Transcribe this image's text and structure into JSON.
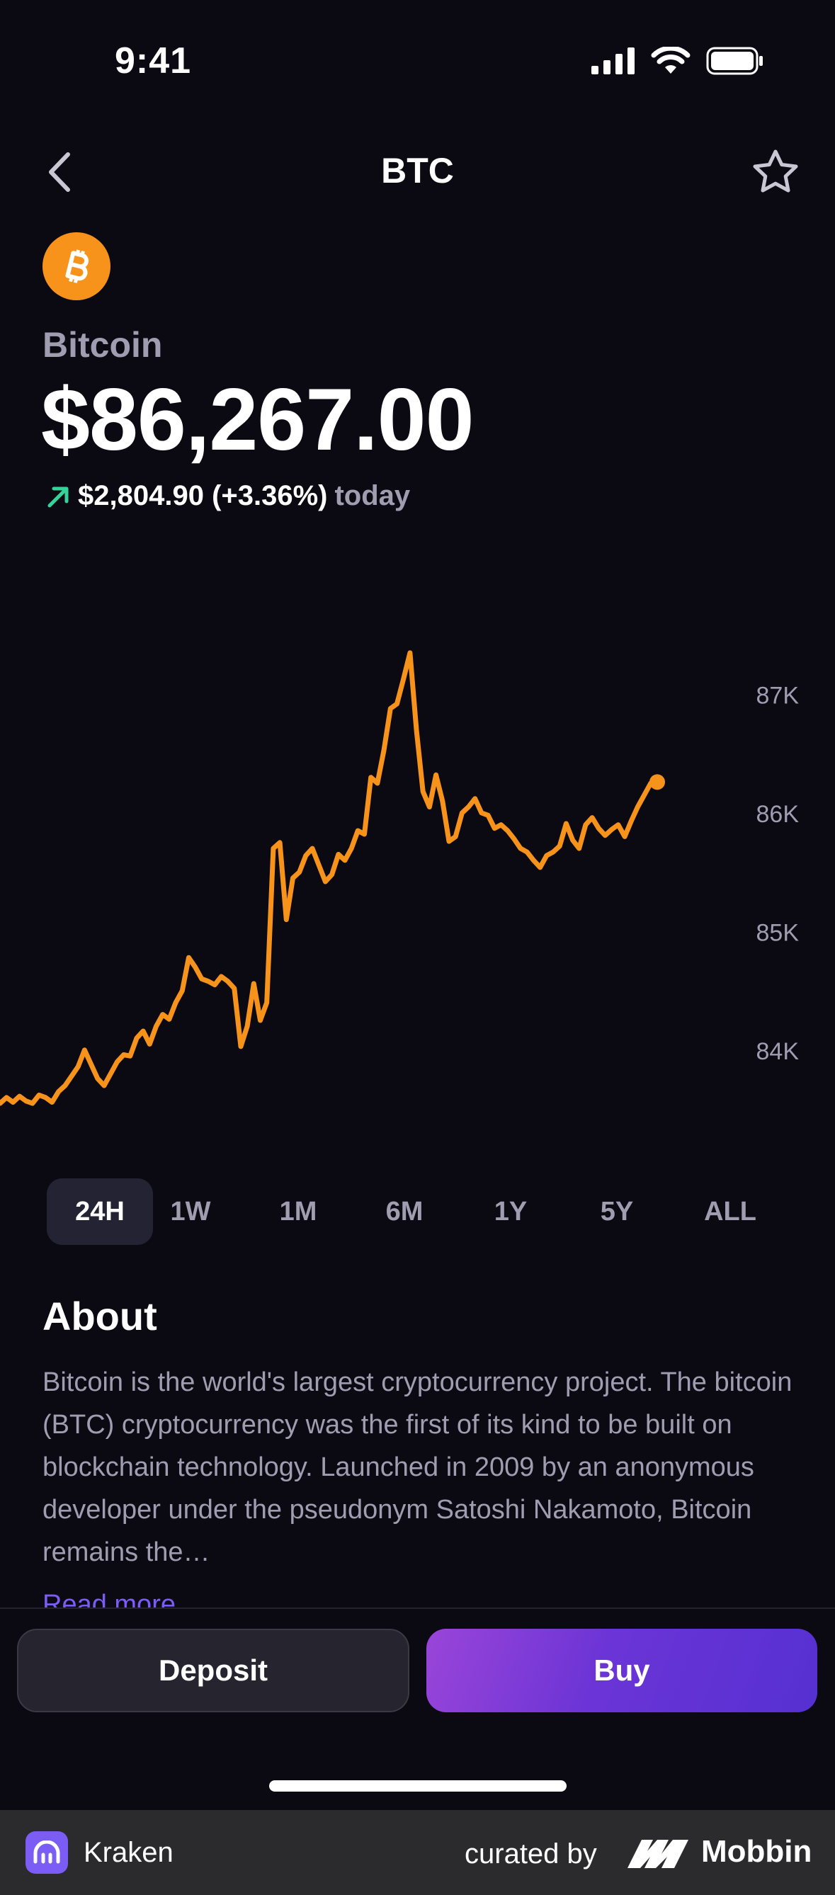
{
  "status_bar": {
    "time": "9:41"
  },
  "nav": {
    "title": "BTC"
  },
  "coin": {
    "name": "Bitcoin",
    "price": "$86,267.00",
    "change_value": "$2,804.90 (+3.36%)",
    "change_suffix": "today",
    "logo_color": "#f7931a",
    "up_color": "#34d399"
  },
  "chart_data": {
    "type": "line",
    "line_color": "#f7931a",
    "y_ticks": [
      "87K",
      "86K",
      "85K",
      "84K"
    ],
    "y_tick_values": [
      87000,
      86000,
      85000,
      84000
    ],
    "ylim": [
      83300,
      87600
    ],
    "grid": false,
    "series": [
      {
        "values": [
          83550,
          83600,
          83560,
          83610,
          83570,
          83550,
          83620,
          83600,
          83560,
          83650,
          83700,
          83780,
          83860,
          84000,
          83880,
          83760,
          83700,
          83800,
          83900,
          83960,
          83950,
          84100,
          84160,
          84050,
          84200,
          84300,
          84260,
          84400,
          84500,
          84780,
          84700,
          84600,
          84580,
          84550,
          84620,
          84580,
          84520,
          84030,
          84200,
          84560,
          84250,
          84400,
          85700,
          85750,
          85100,
          85450,
          85500,
          85640,
          85700,
          85560,
          85420,
          85480,
          85650,
          85600,
          85700,
          85850,
          85820,
          86300,
          86250,
          86530,
          86880,
          86920,
          87130,
          87350,
          86700,
          86180,
          86050,
          86320,
          86100,
          85760,
          85800,
          86000,
          86050,
          86120,
          86000,
          85980,
          85870,
          85900,
          85850,
          85780,
          85700,
          85670,
          85600,
          85540,
          85640,
          85670,
          85720,
          85910,
          85770,
          85700,
          85900,
          85960,
          85870,
          85810,
          85860,
          85900,
          85800,
          85930,
          86050,
          86150,
          86250,
          86260
        ]
      }
    ]
  },
  "range_tabs": [
    {
      "label": "24H",
      "active": true
    },
    {
      "label": "1W",
      "active": false
    },
    {
      "label": "1M",
      "active": false
    },
    {
      "label": "6M",
      "active": false
    },
    {
      "label": "1Y",
      "active": false
    },
    {
      "label": "5Y",
      "active": false
    },
    {
      "label": "ALL",
      "active": false
    }
  ],
  "about": {
    "title": "About",
    "text": "Bitcoin is the world's largest cryptocurrency project. The bitcoin (BTC) cryptocurrency was the first of its kind to be built on blockchain technology. Launched in 2009 by an anonymous developer under the pseudonym Satoshi Nakamoto, Bitcoin remains the…",
    "read_more": "Read more"
  },
  "actions": {
    "deposit_label": "Deposit",
    "buy_label": "Buy"
  },
  "footer": {
    "app_name": "Kraken",
    "curated_by": "curated by",
    "brand": "Mobbin"
  }
}
